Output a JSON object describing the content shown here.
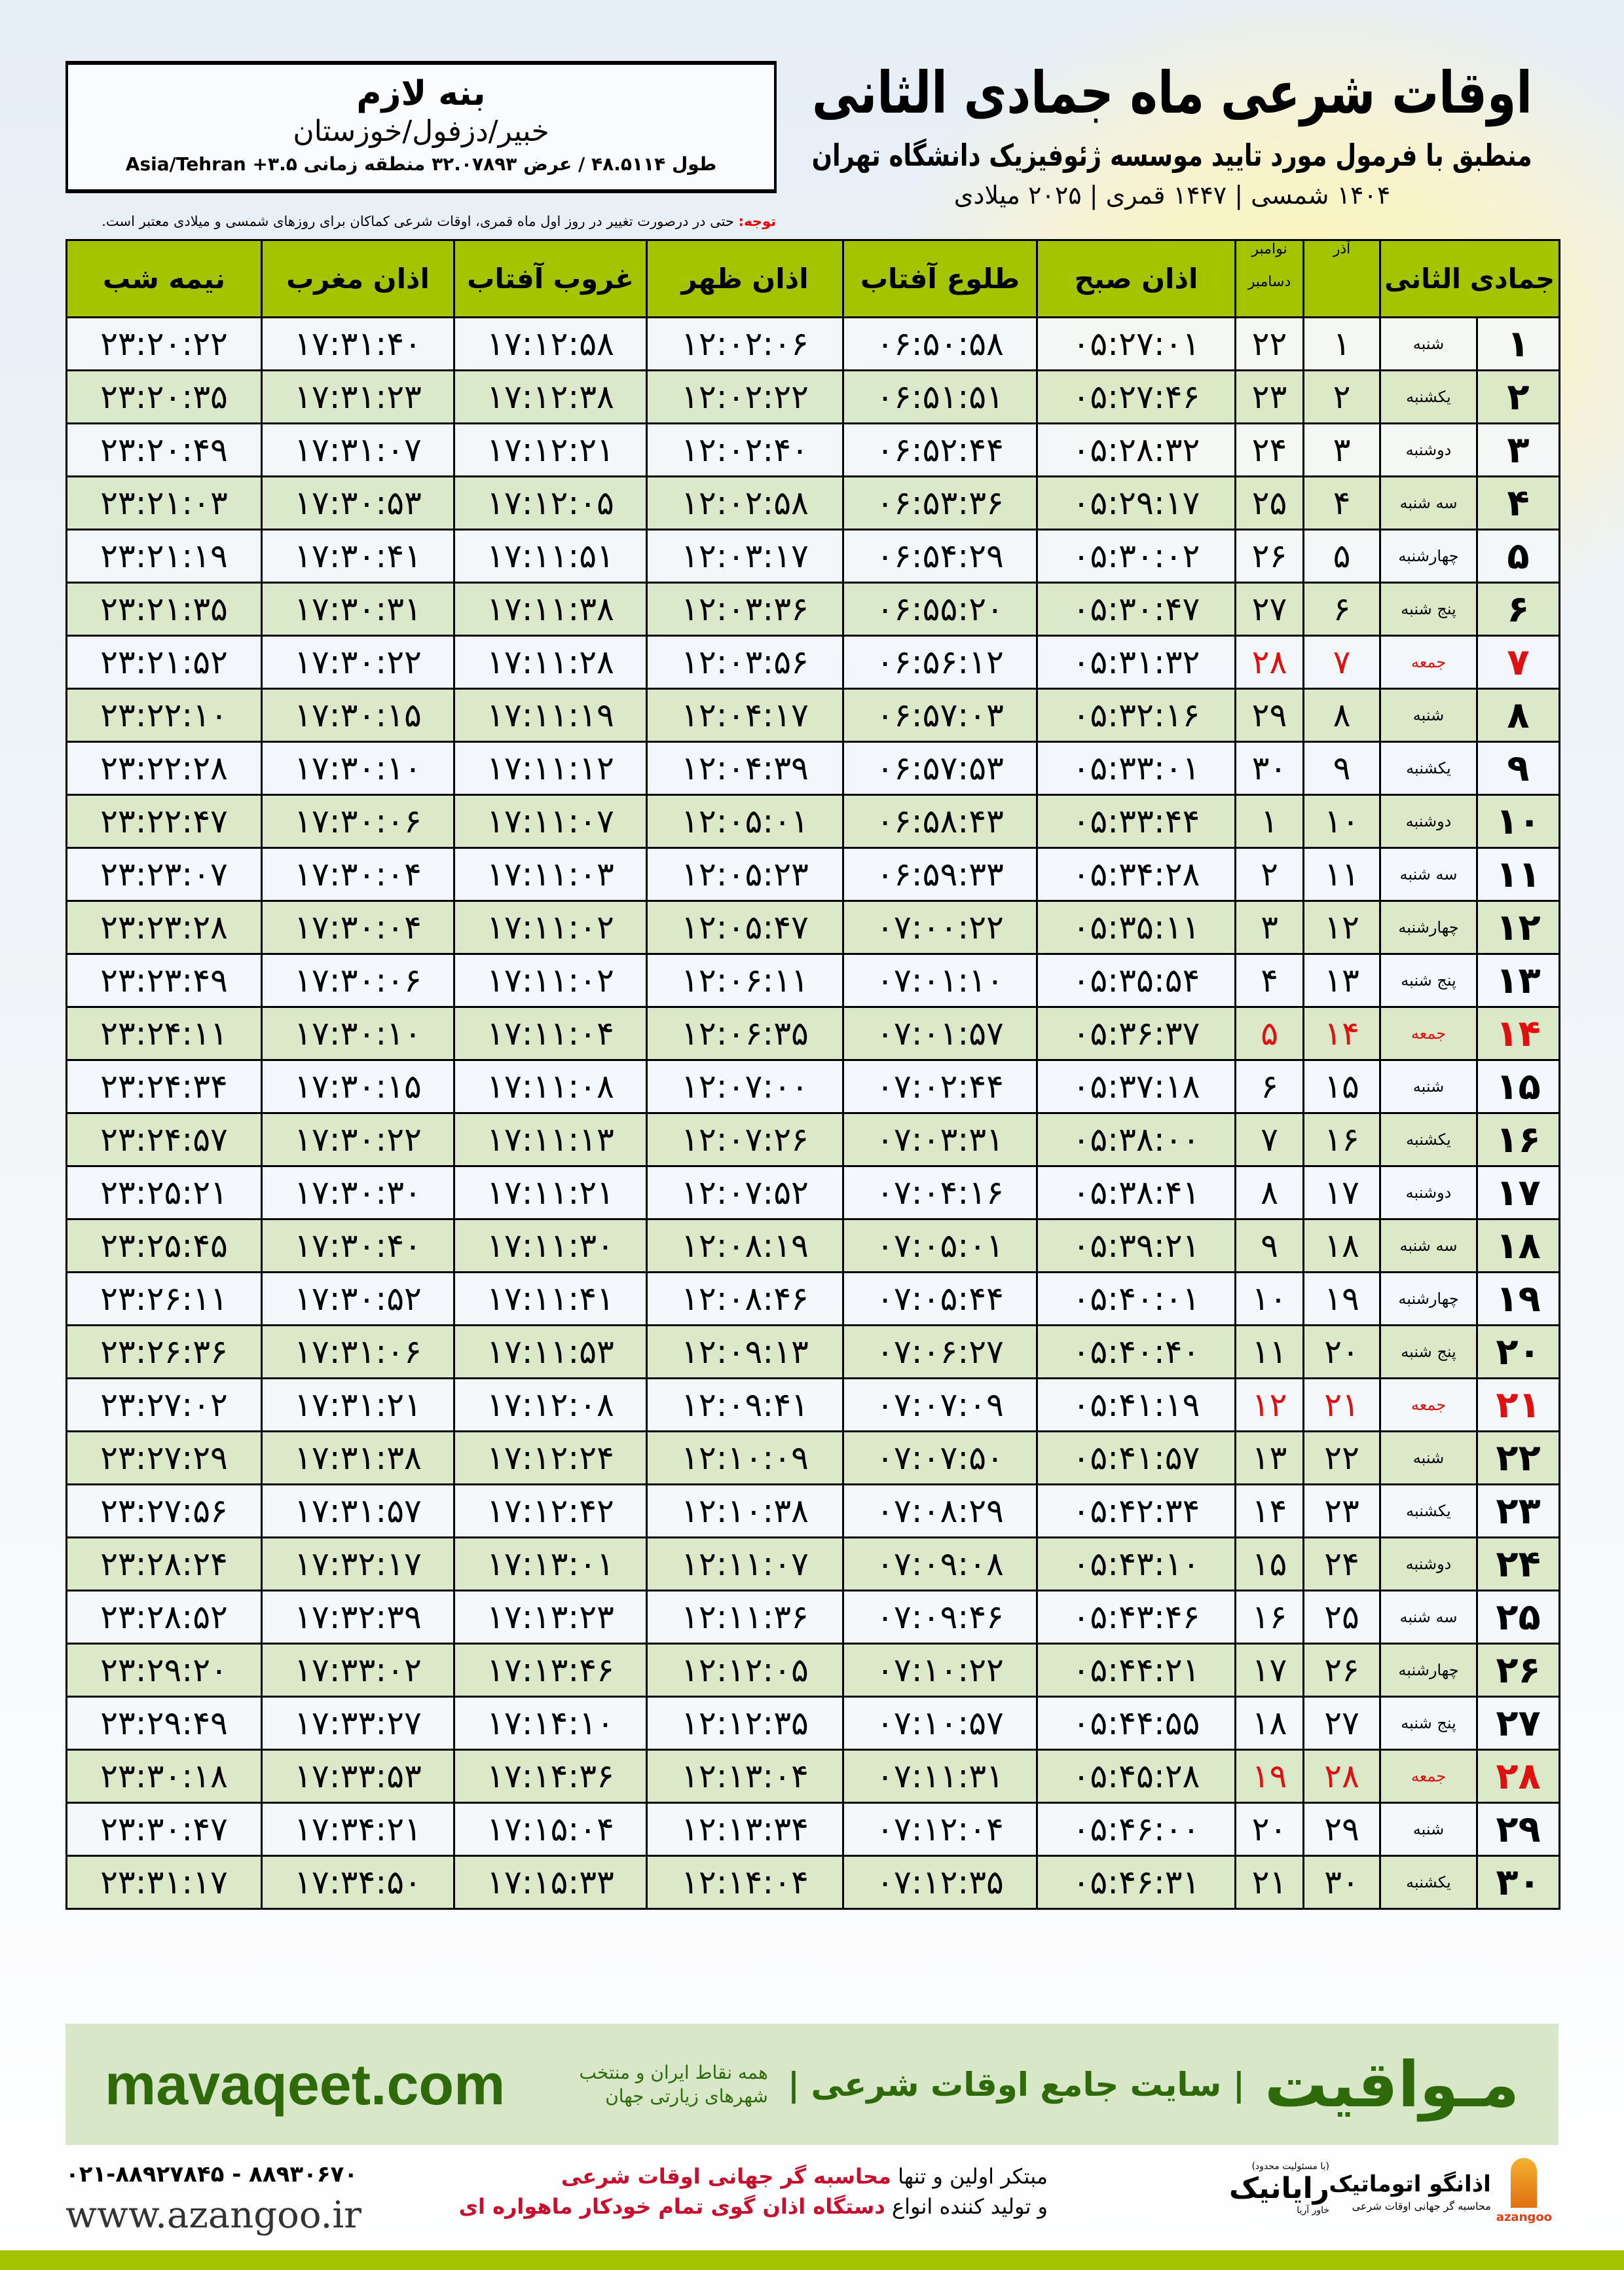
{
  "header": {
    "title": "اوقات شرعی ماه جمادی الثانی",
    "subtitle": "منطبق با فرمول مورد تایید موسسه ژئوفیزیک دانشگاه تهران",
    "dates": "۱۴۰۴ شمسی | ۱۴۴۷ قمری | ۲۰۲۵ میلادی"
  },
  "location": {
    "name": "بنه لازم",
    "region": "خبیر/دزفول/خوزستان",
    "coords": "طول ۴۸.۵۱۱۴ / عرض ۳۲.۰۷۸۹۳ منطقه زمانی ۳.۵+ Asia/Tehran"
  },
  "note": {
    "label": "توجه:",
    "text": " حتی در درصورت تغییر در روز اول ماه قمری، اوقات شرعی کماکان برای روزهای شمسی و میلادی معتبر است."
  },
  "table": {
    "headers": {
      "month": "جمادی الثانی",
      "azar": "آذر",
      "nov": "نوامبر",
      "dec": "دسامبر",
      "sobh": "اذان صبح",
      "tolu": "طلوع آفتاب",
      "zohr": "اذان ظهر",
      "ghorub": "غروب آفتاب",
      "maghrib": "اذان مغرب",
      "nime": "نیمه شب"
    },
    "holiday_color": "#e01010",
    "header_color": "#a4c400",
    "rows": [
      {
        "cells": [
          "۱",
          "شنبه",
          "۱",
          "۲۲",
          "۰۵:۲۷:۰۱",
          "۰۶:۵۰:۵۸",
          "۱۲:۰۲:۰۶",
          "۱۷:۱۲:۵۸",
          "۱۷:۳۱:۴۰",
          "۲۳:۲۰:۲۲"
        ]
      },
      {
        "cells": [
          "۲",
          "یکشنبه",
          "۲",
          "۲۳",
          "۰۵:۲۷:۴۶",
          "۰۶:۵۱:۵۱",
          "۱۲:۰۲:۲۲",
          "۱۷:۱۲:۳۸",
          "۱۷:۳۱:۲۳",
          "۲۳:۲۰:۳۵"
        ]
      },
      {
        "cells": [
          "۳",
          "دوشنبه",
          "۳",
          "۲۴",
          "۰۵:۲۸:۳۲",
          "۰۶:۵۲:۴۴",
          "۱۲:۰۲:۴۰",
          "۱۷:۱۲:۲۱",
          "۱۷:۳۱:۰۷",
          "۲۳:۲۰:۴۹"
        ]
      },
      {
        "cells": [
          "۴",
          "سه شنبه",
          "۴",
          "۲۵",
          "۰۵:۲۹:۱۷",
          "۰۶:۵۳:۳۶",
          "۱۲:۰۲:۵۸",
          "۱۷:۱۲:۰۵",
          "۱۷:۳۰:۵۳",
          "۲۳:۲۱:۰۳"
        ]
      },
      {
        "cells": [
          "۵",
          "چهارشنبه",
          "۵",
          "۲۶",
          "۰۵:۳۰:۰۲",
          "۰۶:۵۴:۲۹",
          "۱۲:۰۳:۱۷",
          "۱۷:۱۱:۵۱",
          "۱۷:۳۰:۴۱",
          "۲۳:۲۱:۱۹"
        ]
      },
      {
        "cells": [
          "۶",
          "پنج شنبه",
          "۶",
          "۲۷",
          "۰۵:۳۰:۴۷",
          "۰۶:۵۵:۲۰",
          "۱۲:۰۳:۳۶",
          "۱۷:۱۱:۳۸",
          "۱۷:۳۰:۳۱",
          "۲۳:۲۱:۳۵"
        ]
      },
      {
        "cells": [
          "۷",
          "جمعه",
          "۷",
          "۲۸",
          "۰۵:۳۱:۳۲",
          "۰۶:۵۶:۱۲",
          "۱۲:۰۳:۵۶",
          "۱۷:۱۱:۲۸",
          "۱۷:۳۰:۲۲",
          "۲۳:۲۱:۵۲"
        ],
        "holiday": true
      },
      {
        "cells": [
          "۸",
          "شنبه",
          "۸",
          "۲۹",
          "۰۵:۳۲:۱۶",
          "۰۶:۵۷:۰۳",
          "۱۲:۰۴:۱۷",
          "۱۷:۱۱:۱۹",
          "۱۷:۳۰:۱۵",
          "۲۳:۲۲:۱۰"
        ]
      },
      {
        "cells": [
          "۹",
          "یکشنبه",
          "۹",
          "۳۰",
          "۰۵:۳۳:۰۱",
          "۰۶:۵۷:۵۳",
          "۱۲:۰۴:۳۹",
          "۱۷:۱۱:۱۲",
          "۱۷:۳۰:۱۰",
          "۲۳:۲۲:۲۸"
        ]
      },
      {
        "cells": [
          "۱۰",
          "دوشنبه",
          "۱۰",
          "۱",
          "۰۵:۳۳:۴۴",
          "۰۶:۵۸:۴۳",
          "۱۲:۰۵:۰۱",
          "۱۷:۱۱:۰۷",
          "۱۷:۳۰:۰۶",
          "۲۳:۲۲:۴۷"
        ]
      },
      {
        "cells": [
          "۱۱",
          "سه شنبه",
          "۱۱",
          "۲",
          "۰۵:۳۴:۲۸",
          "۰۶:۵۹:۳۳",
          "۱۲:۰۵:۲۳",
          "۱۷:۱۱:۰۳",
          "۱۷:۳۰:۰۴",
          "۲۳:۲۳:۰۷"
        ]
      },
      {
        "cells": [
          "۱۲",
          "چهارشنبه",
          "۱۲",
          "۳",
          "۰۵:۳۵:۱۱",
          "۰۷:۰۰:۲۲",
          "۱۲:۰۵:۴۷",
          "۱۷:۱۱:۰۲",
          "۱۷:۳۰:۰۴",
          "۲۳:۲۳:۲۸"
        ]
      },
      {
        "cells": [
          "۱۳",
          "پنج شنبه",
          "۱۳",
          "۴",
          "۰۵:۳۵:۵۴",
          "۰۷:۰۱:۱۰",
          "۱۲:۰۶:۱۱",
          "۱۷:۱۱:۰۲",
          "۱۷:۳۰:۰۶",
          "۲۳:۲۳:۴۹"
        ]
      },
      {
        "cells": [
          "۱۴",
          "جمعه",
          "۱۴",
          "۵",
          "۰۵:۳۶:۳۷",
          "۰۷:۰۱:۵۷",
          "۱۲:۰۶:۳۵",
          "۱۷:۱۱:۰۴",
          "۱۷:۳۰:۱۰",
          "۲۳:۲۴:۱۱"
        ],
        "holiday": true
      },
      {
        "cells": [
          "۱۵",
          "شنبه",
          "۱۵",
          "۶",
          "۰۵:۳۷:۱۸",
          "۰۷:۰۲:۴۴",
          "۱۲:۰۷:۰۰",
          "۱۷:۱۱:۰۸",
          "۱۷:۳۰:۱۵",
          "۲۳:۲۴:۳۴"
        ]
      },
      {
        "cells": [
          "۱۶",
          "یکشنبه",
          "۱۶",
          "۷",
          "۰۵:۳۸:۰۰",
          "۰۷:۰۳:۳۱",
          "۱۲:۰۷:۲۶",
          "۱۷:۱۱:۱۳",
          "۱۷:۳۰:۲۲",
          "۲۳:۲۴:۵۷"
        ]
      },
      {
        "cells": [
          "۱۷",
          "دوشنبه",
          "۱۷",
          "۸",
          "۰۵:۳۸:۴۱",
          "۰۷:۰۴:۱۶",
          "۱۲:۰۷:۵۲",
          "۱۷:۱۱:۲۱",
          "۱۷:۳۰:۳۰",
          "۲۳:۲۵:۲۱"
        ]
      },
      {
        "cells": [
          "۱۸",
          "سه شنبه",
          "۱۸",
          "۹",
          "۰۵:۳۹:۲۱",
          "۰۷:۰۵:۰۱",
          "۱۲:۰۸:۱۹",
          "۱۷:۱۱:۳۰",
          "۱۷:۳۰:۴۰",
          "۲۳:۲۵:۴۵"
        ]
      },
      {
        "cells": [
          "۱۹",
          "چهارشنبه",
          "۱۹",
          "۱۰",
          "۰۵:۴۰:۰۱",
          "۰۷:۰۵:۴۴",
          "۱۲:۰۸:۴۶",
          "۱۷:۱۱:۴۱",
          "۱۷:۳۰:۵۲",
          "۲۳:۲۶:۱۱"
        ]
      },
      {
        "cells": [
          "۲۰",
          "پنج شنبه",
          "۲۰",
          "۱۱",
          "۰۵:۴۰:۴۰",
          "۰۷:۰۶:۲۷",
          "۱۲:۰۹:۱۳",
          "۱۷:۱۱:۵۳",
          "۱۷:۳۱:۰۶",
          "۲۳:۲۶:۳۶"
        ]
      },
      {
        "cells": [
          "۲۱",
          "جمعه",
          "۲۱",
          "۱۲",
          "۰۵:۴۱:۱۹",
          "۰۷:۰۷:۰۹",
          "۱۲:۰۹:۴۱",
          "۱۷:۱۲:۰۸",
          "۱۷:۳۱:۲۱",
          "۲۳:۲۷:۰۲"
        ],
        "holiday": true
      },
      {
        "cells": [
          "۲۲",
          "شنبه",
          "۲۲",
          "۱۳",
          "۰۵:۴۱:۵۷",
          "۰۷:۰۷:۵۰",
          "۱۲:۱۰:۰۹",
          "۱۷:۱۲:۲۴",
          "۱۷:۳۱:۳۸",
          "۲۳:۲۷:۲۹"
        ]
      },
      {
        "cells": [
          "۲۳",
          "یکشنبه",
          "۲۳",
          "۱۴",
          "۰۵:۴۲:۳۴",
          "۰۷:۰۸:۲۹",
          "۱۲:۱۰:۳۸",
          "۱۷:۱۲:۴۲",
          "۱۷:۳۱:۵۷",
          "۲۳:۲۷:۵۶"
        ]
      },
      {
        "cells": [
          "۲۴",
          "دوشنبه",
          "۲۴",
          "۱۵",
          "۰۵:۴۳:۱۰",
          "۰۷:۰۹:۰۸",
          "۱۲:۱۱:۰۷",
          "۱۷:۱۳:۰۱",
          "۱۷:۳۲:۱۷",
          "۲۳:۲۸:۲۴"
        ]
      },
      {
        "cells": [
          "۲۵",
          "سه شنبه",
          "۲۵",
          "۱۶",
          "۰۵:۴۳:۴۶",
          "۰۷:۰۹:۴۶",
          "۱۲:۱۱:۳۶",
          "۱۷:۱۳:۲۳",
          "۱۷:۳۲:۳۹",
          "۲۳:۲۸:۵۲"
        ]
      },
      {
        "cells": [
          "۲۶",
          "چهارشنبه",
          "۲۶",
          "۱۷",
          "۰۵:۴۴:۲۱",
          "۰۷:۱۰:۲۲",
          "۱۲:۱۲:۰۵",
          "۱۷:۱۳:۴۶",
          "۱۷:۳۳:۰۲",
          "۲۳:۲۹:۲۰"
        ]
      },
      {
        "cells": [
          "۲۷",
          "پنج شنبه",
          "۲۷",
          "۱۸",
          "۰۵:۴۴:۵۵",
          "۰۷:۱۰:۵۷",
          "۱۲:۱۲:۳۵",
          "۱۷:۱۴:۱۰",
          "۱۷:۳۳:۲۷",
          "۲۳:۲۹:۴۹"
        ]
      },
      {
        "cells": [
          "۲۸",
          "جمعه",
          "۲۸",
          "۱۹",
          "۰۵:۴۵:۲۸",
          "۰۷:۱۱:۳۱",
          "۱۲:۱۳:۰۴",
          "۱۷:۱۴:۳۶",
          "۱۷:۳۳:۵۳",
          "۲۳:۳۰:۱۸"
        ],
        "holiday": true
      },
      {
        "cells": [
          "۲۹",
          "شنبه",
          "۲۹",
          "۲۰",
          "۰۵:۴۶:۰۰",
          "۰۷:۱۲:۰۴",
          "۱۲:۱۳:۳۴",
          "۱۷:۱۵:۰۴",
          "۱۷:۳۴:۲۱",
          "۲۳:۳۰:۴۷"
        ]
      },
      {
        "cells": [
          "۳۰",
          "یکشنبه",
          "۳۰",
          "۲۱",
          "۰۵:۴۶:۳۱",
          "۰۷:۱۲:۳۵",
          "۱۲:۱۴:۰۴",
          "۱۷:۱۵:۳۳",
          "۱۷:۳۴:۵۰",
          "۲۳:۳۱:۱۷"
        ]
      }
    ]
  },
  "footer": {
    "brand": "مـواقیت",
    "slogan": "| سایت جامع اوقات شرعی |",
    "slogan_sub": "همه نقاط ایران و منتخب شهرهای زیارتی جهان",
    "site": "mavaqeet.com",
    "band_color": "#d8e7c8",
    "promo_line1_a": "مبتکر اولین و تنها ",
    "promo_line1_b": "محاسبه گر جهانی اوقات شرعی",
    "promo_line2_a": "و تولید کننده انواع ",
    "promo_line2_b": "دستگاه اذان گوی تمام خودکار ماهواره ای",
    "phone": "۰۲۱-۸۸۹۲۷۸۴۵ - ۸۸۹۳۰۶۷۰",
    "web": "www.azangoo.ir",
    "logo_azangoo": "اذانگو اتوماتیک",
    "logo_azangoo_caption": "محاسبه گر جهانی اوقات شرعی",
    "logo_azangoo_en": "azangoo",
    "logo_rayanik": "رایانیک",
    "logo_rayanik_sub": "خاور آریا",
    "logo_rayanik_tiny": "(با مسئولیت محدود)"
  }
}
